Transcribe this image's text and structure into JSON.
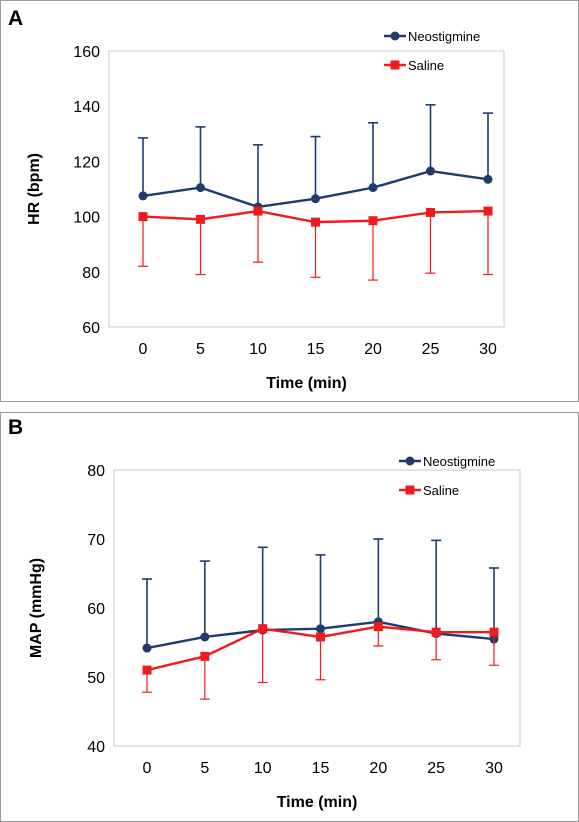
{
  "chart_data": [
    {
      "type": "line",
      "panel_label": "A",
      "xlabel": "Time (min)",
      "ylabel": "HR (bpm)",
      "x": [
        0,
        5,
        10,
        15,
        20,
        25,
        30
      ],
      "ylim": [
        60,
        160
      ],
      "yticks": [
        60,
        80,
        100,
        120,
        140,
        160
      ],
      "grid": false,
      "legend_position": "top-right",
      "series": [
        {
          "name": "Neostigmine",
          "color": "#1f3b6e",
          "marker": "circle",
          "values": [
            107.5,
            110.5,
            103.5,
            106.5,
            110.5,
            116.5,
            113.5
          ],
          "error_upper": [
            21,
            22,
            22.5,
            22.5,
            23.5,
            24,
            24
          ],
          "error_lower": [
            0,
            0,
            0,
            0,
            0,
            0,
            0
          ]
        },
        {
          "name": "Saline",
          "color": "#ee1c1c",
          "marker": "square",
          "values": [
            100,
            99,
            102,
            98,
            98.5,
            101.5,
            102
          ],
          "error_upper": [
            0,
            0,
            0,
            0,
            0,
            0,
            0
          ],
          "error_lower": [
            18,
            20,
            18.5,
            20,
            21.5,
            22,
            23
          ]
        }
      ]
    },
    {
      "type": "line",
      "panel_label": "B",
      "xlabel": "Time (min)",
      "ylabel": "MAP (mmHg)",
      "x": [
        0,
        5,
        10,
        15,
        20,
        25,
        30
      ],
      "ylim": [
        40,
        80
      ],
      "yticks": [
        40,
        50,
        60,
        70,
        80
      ],
      "grid": false,
      "legend_position": "top-right",
      "series": [
        {
          "name": "Neostigmine",
          "color": "#1f3b6e",
          "marker": "circle",
          "values": [
            54.2,
            55.8,
            56.8,
            57.0,
            58.0,
            56.3,
            55.5
          ],
          "error_upper": [
            10,
            11,
            12,
            10.7,
            12,
            13.5,
            10.3
          ],
          "error_lower": [
            0,
            0,
            0,
            0,
            0,
            0,
            0
          ]
        },
        {
          "name": "Saline",
          "color": "#ee1c1c",
          "marker": "square",
          "values": [
            51.0,
            53.0,
            57.0,
            55.8,
            57.3,
            56.5,
            56.5
          ],
          "error_upper": [
            0,
            0,
            0,
            0,
            0,
            0,
            0
          ],
          "error_lower": [
            3.2,
            6.2,
            7.8,
            6.2,
            2.8,
            4.0,
            4.8
          ]
        }
      ]
    }
  ]
}
